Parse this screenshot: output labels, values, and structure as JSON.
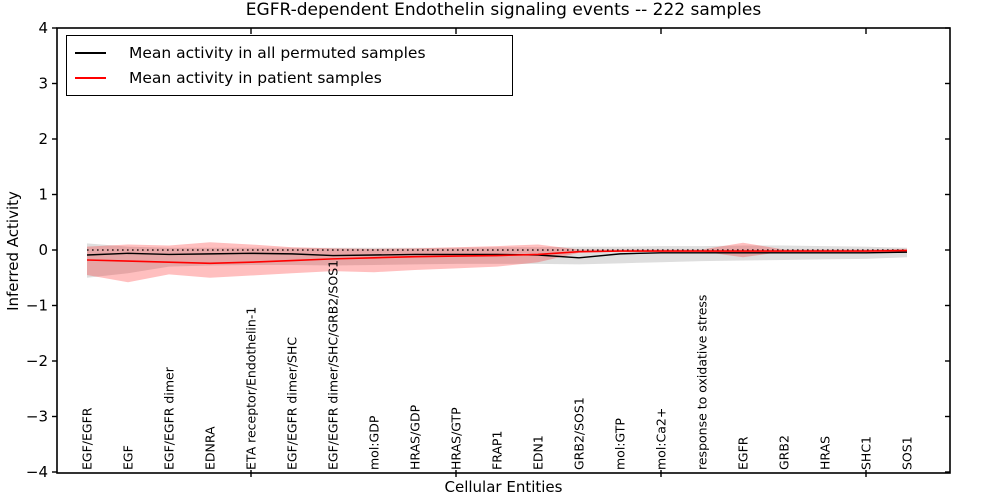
{
  "title": "EGFR-dependent Endothelin signaling events -- 222 samples",
  "legend": {
    "items": [
      {
        "label": "Mean activity in all permuted samples",
        "color": "#000000"
      },
      {
        "label": "Mean activity in patient samples",
        "color": "#ff0000"
      }
    ]
  },
  "chart_data": {
    "type": "line",
    "title": "EGFR-dependent Endothelin signaling events -- 222 samples",
    "xlabel": "Cellular Entities",
    "ylabel": "Inferred Activity",
    "ylim": [
      -4,
      4
    ],
    "yticks": [
      4,
      3,
      2,
      1,
      0,
      -1,
      -2,
      -3,
      -4
    ],
    "grid": false,
    "legend_position": "upper left",
    "categories": [
      "EGF/EGFR",
      "EGF",
      "EGF/EGFR dimer",
      "EDNRA",
      "ETA receptor/Endothelin-1",
      "EGF/EGFR dimer/SHC",
      "EGF/EGFR dimer/SHC/GRB2/SOS1",
      "mol:GDP",
      "HRAS/GDP",
      "HRAS/GTP",
      "FRAP1",
      "EDN1",
      "GRB2/SOS1",
      "mol:GTP",
      "mol:Ca2+",
      "response to oxidative stress",
      "EGFR",
      "GRB2",
      "HRAS",
      "SHC1",
      "SOS1"
    ],
    "series": [
      {
        "name": "zero-reference-line",
        "color": "#000000",
        "style": "dotted",
        "width": 1.2,
        "values": [
          0,
          0,
          0,
          0,
          0,
          0,
          0,
          0,
          0,
          0,
          0,
          0,
          0,
          0,
          0,
          0,
          0,
          0,
          0,
          0,
          0
        ]
      },
      {
        "name": "Mean activity in all permuted samples",
        "color": "#000000",
        "style": "solid",
        "width": 1.4,
        "values": [
          -0.09,
          -0.06,
          -0.08,
          -0.07,
          -0.06,
          -0.07,
          -0.1,
          -0.09,
          -0.08,
          -0.08,
          -0.08,
          -0.09,
          -0.14,
          -0.07,
          -0.05,
          -0.05,
          -0.05,
          -0.05,
          -0.05,
          -0.05,
          -0.04
        ]
      },
      {
        "name": "Mean activity in patient samples",
        "color": "#ff0000",
        "style": "solid",
        "width": 1.6,
        "values": [
          -0.18,
          -0.2,
          -0.22,
          -0.24,
          -0.22,
          -0.19,
          -0.16,
          -0.14,
          -0.12,
          -0.11,
          -0.1,
          -0.08,
          -0.03,
          -0.02,
          -0.02,
          -0.02,
          -0.02,
          -0.02,
          -0.02,
          -0.02,
          -0.01
        ]
      }
    ],
    "bands": [
      {
        "name": "permuted-samples-std-band",
        "color": "rgba(0,0,0,0.13)",
        "upper": [
          0.12,
          0.06,
          0.04,
          0.04,
          0.04,
          0.04,
          0.04,
          0.04,
          0.04,
          0.04,
          0.05,
          0.05,
          0.06,
          0.06,
          0.07,
          0.07,
          0.08,
          0.08,
          0.07,
          0.06,
          0.04
        ],
        "lower": [
          -0.5,
          -0.42,
          -0.3,
          -0.28,
          -0.27,
          -0.27,
          -0.28,
          -0.27,
          -0.26,
          -0.25,
          -0.25,
          -0.25,
          -0.26,
          -0.24,
          -0.22,
          -0.2,
          -0.19,
          -0.18,
          -0.17,
          -0.16,
          -0.13
        ]
      },
      {
        "name": "patient-samples-std-band",
        "color": "rgba(255,0,0,0.25)",
        "upper": [
          0.06,
          0.1,
          0.08,
          0.14,
          0.1,
          0.05,
          0.03,
          0.02,
          0.03,
          0.05,
          0.07,
          0.1,
          0.01,
          0.01,
          0.01,
          0.01,
          0.13,
          0.01,
          0.01,
          0.01,
          0.02
        ],
        "lower": [
          -0.45,
          -0.58,
          -0.44,
          -0.5,
          -0.46,
          -0.42,
          -0.38,
          -0.4,
          -0.36,
          -0.33,
          -0.3,
          -0.22,
          -0.05,
          -0.03,
          -0.03,
          -0.03,
          -0.13,
          -0.03,
          -0.03,
          -0.03,
          -0.04
        ]
      }
    ],
    "xtick_mark_indices": [
      4,
      9,
      14,
      19
    ]
  }
}
